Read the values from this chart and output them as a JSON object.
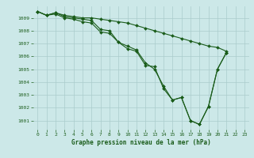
{
  "background_color": "#cce8e8",
  "grid_color": "#aacccc",
  "line_color": "#1a5c1a",
  "xlabel": "Graphe pression niveau de la mer (hPa)",
  "ylim": [
    1000.3,
    1009.9
  ],
  "xlim": [
    -0.5,
    23.5
  ],
  "yticks": [
    1001,
    1002,
    1003,
    1004,
    1005,
    1006,
    1007,
    1008,
    1009
  ],
  "xticks": [
    0,
    1,
    2,
    3,
    4,
    5,
    6,
    7,
    8,
    9,
    10,
    11,
    12,
    13,
    14,
    15,
    16,
    17,
    18,
    19,
    20,
    21,
    22,
    23
  ],
  "line1": [
    1009.5,
    1009.2,
    1009.4,
    1009.2,
    1009.1,
    1009.0,
    1009.0,
    1008.9,
    1008.8,
    1008.7,
    1008.6,
    1008.4,
    1008.2,
    1008.0,
    1007.8,
    1007.6,
    1007.4,
    1007.2,
    1007.0,
    1006.8,
    1006.7,
    1006.4,
    null,
    null
  ],
  "line2": [
    1009.5,
    1009.2,
    1009.3,
    1009.0,
    1008.9,
    1008.7,
    1008.6,
    1007.9,
    1007.8,
    1007.1,
    1006.8,
    1006.5,
    1005.5,
    1005.0,
    1003.7,
    1002.6,
    1002.8,
    1001.0,
    1000.7,
    1002.1,
    1005.0,
    1006.3,
    null,
    null
  ],
  "line3": [
    1009.5,
    1009.2,
    1009.4,
    1009.1,
    1009.0,
    1008.9,
    1008.8,
    1008.1,
    1008.0,
    1007.1,
    1006.6,
    1006.4,
    1005.3,
    1005.2,
    1003.5,
    1002.6,
    1002.8,
    1001.0,
    1000.7,
    1002.1,
    1005.0,
    1006.3,
    null,
    null
  ],
  "marker_size": 2.0,
  "line_width": 0.8
}
